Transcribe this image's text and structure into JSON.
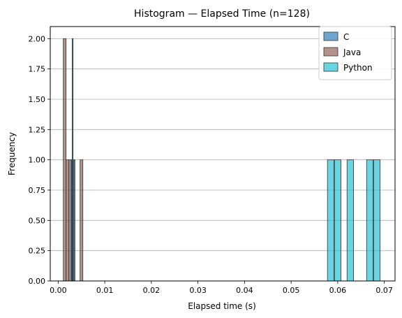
{
  "chart_data": {
    "type": "histogram",
    "title": "Histogram — Elapsed Time (n=128)",
    "xlabel": "Elapsed time (s)",
    "ylabel": "Frequency",
    "xlim": [
      -0.0017,
      0.0723
    ],
    "ylim": [
      0,
      2.1
    ],
    "xticks": [
      0.0,
      0.01,
      0.02,
      0.03,
      0.04,
      0.05,
      0.06,
      0.07
    ],
    "xtick_labels": [
      "0.00",
      "0.01",
      "0.02",
      "0.03",
      "0.04",
      "0.05",
      "0.06",
      "0.07"
    ],
    "yticks": [
      0,
      0.25,
      0.5,
      0.75,
      1.0,
      1.25,
      1.5,
      1.75,
      2.0
    ],
    "ytick_labels": [
      "0.00",
      "0.25",
      "0.50",
      "0.75",
      "1.00",
      "1.25",
      "1.50",
      "1.75",
      "2.00"
    ],
    "grid": "y-only",
    "legend": "top-right",
    "series": [
      {
        "name": "Python",
        "color": "#17becf",
        "bins": [
          {
            "x0": 0.0578,
            "x1": 0.0592,
            "count": 1
          },
          {
            "x0": 0.0593,
            "x1": 0.0607,
            "count": 1
          },
          {
            "x0": 0.062,
            "x1": 0.0634,
            "count": 1
          },
          {
            "x0": 0.0662,
            "x1": 0.0676,
            "count": 1
          },
          {
            "x0": 0.0677,
            "x1": 0.0691,
            "count": 1
          }
        ]
      },
      {
        "name": "Java",
        "color": "#8c564b",
        "bins": [
          {
            "x0": 0.0011,
            "x1": 0.0017,
            "count": 2
          },
          {
            "x0": 0.0017,
            "x1": 0.0023,
            "count": 1
          },
          {
            "x0": 0.0023,
            "x1": 0.0029,
            "count": 1
          },
          {
            "x0": 0.0047,
            "x1": 0.0053,
            "count": 1
          }
        ]
      },
      {
        "name": "C",
        "color": "#1f77b4",
        "bins": [
          {
            "x0": 0.0028,
            "x1": 0.003,
            "count": 1
          },
          {
            "x0": 0.003,
            "x1": 0.0032,
            "count": 2
          },
          {
            "x0": 0.0032,
            "x1": 0.0034,
            "count": 1
          },
          {
            "x0": 0.0034,
            "x1": 0.0036,
            "count": 1
          }
        ]
      }
    ],
    "legend_order": [
      "C",
      "Java",
      "Python"
    ]
  }
}
